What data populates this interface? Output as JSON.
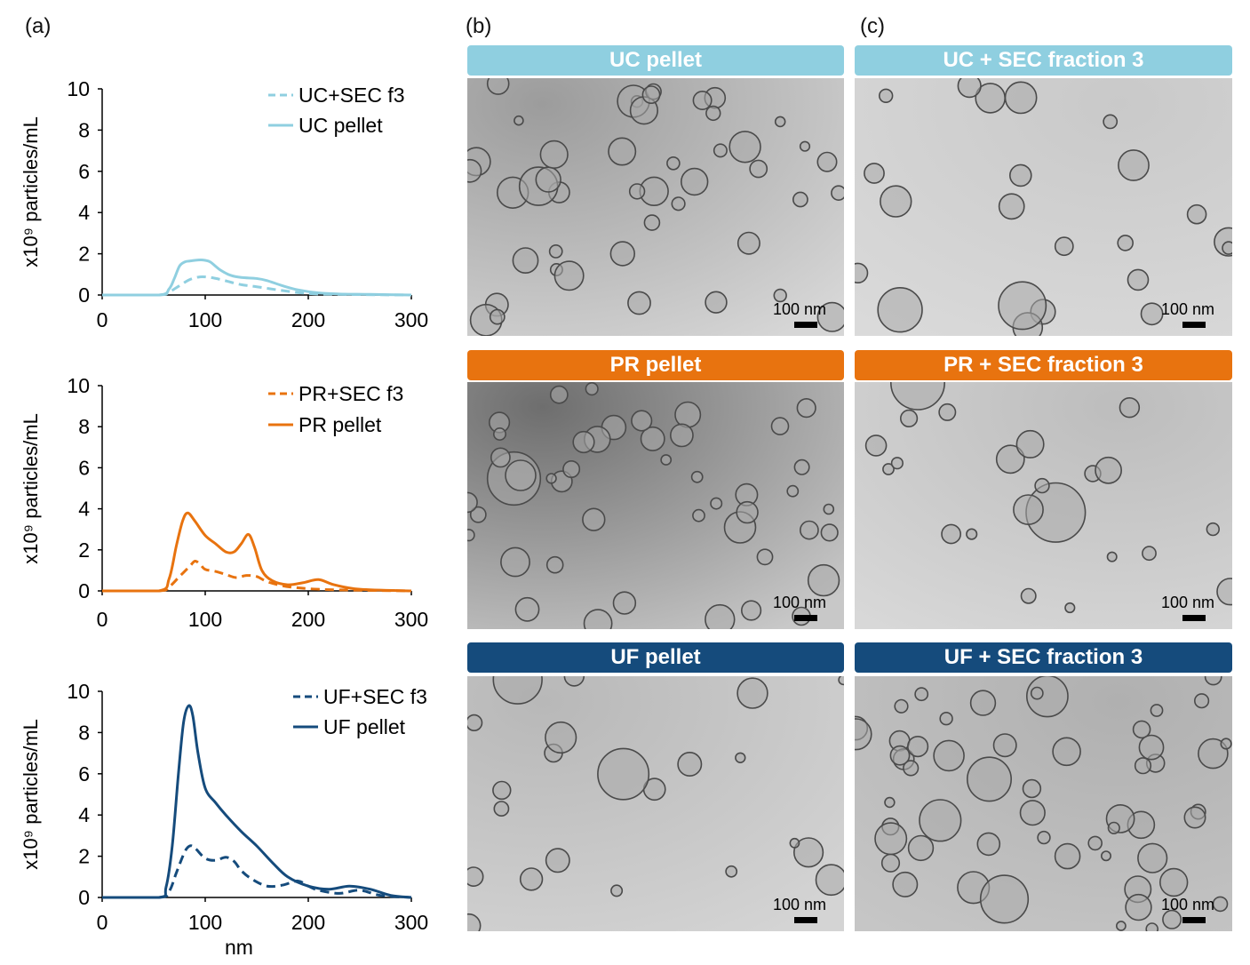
{
  "figure": {
    "panel_labels": {
      "a": "(a)",
      "b": "(b)",
      "c": "(c)"
    },
    "colors": {
      "uc": "#8fcfe0",
      "pr": "#e8730f",
      "uf": "#154b7c"
    },
    "em_panels": [
      {
        "title": "UC pellet",
        "scale_label": "100 nm",
        "color_key": "uc"
      },
      {
        "title": "UC + SEC fraction 3",
        "scale_label": "100 nm",
        "color_key": "uc"
      },
      {
        "title": "PR pellet",
        "scale_label": "100 nm",
        "color_key": "pr"
      },
      {
        "title": "PR + SEC fraction 3",
        "scale_label": "100 nm",
        "color_key": "pr"
      },
      {
        "title": "UF pellet",
        "scale_label": "100 nm",
        "color_key": "uf"
      },
      {
        "title": "UF + SEC fraction 3",
        "scale_label": "100 nm",
        "color_key": "uf"
      }
    ]
  },
  "chart_data": [
    {
      "type": "line",
      "ylabel": "x10⁹ particles/mL",
      "xlabel": "",
      "xlim": [
        0,
        300
      ],
      "ylim": [
        0,
        10
      ],
      "xticks": [
        0,
        100,
        200,
        300
      ],
      "yticks": [
        0,
        2,
        4,
        6,
        8,
        10
      ],
      "color": "#8fcfe0",
      "legend_position": "top-right",
      "series": [
        {
          "name": "UC+SEC f3",
          "style": "dashed",
          "x": [
            0,
            55,
            65,
            75,
            85,
            95,
            105,
            115,
            125,
            135,
            150,
            170,
            190,
            210,
            250,
            300
          ],
          "y": [
            0,
            0,
            0.15,
            0.45,
            0.75,
            0.88,
            0.85,
            0.75,
            0.62,
            0.5,
            0.4,
            0.25,
            0.12,
            0.05,
            0.02,
            0
          ]
        },
        {
          "name": "UC pellet",
          "style": "solid",
          "x": [
            0,
            55,
            65,
            70,
            75,
            80,
            85,
            95,
            100,
            105,
            115,
            125,
            135,
            150,
            160,
            175,
            190,
            210,
            230,
            260,
            300
          ],
          "y": [
            0,
            0,
            0.3,
            0.8,
            1.4,
            1.6,
            1.65,
            1.7,
            1.68,
            1.6,
            1.2,
            0.95,
            0.85,
            0.8,
            0.7,
            0.45,
            0.25,
            0.1,
            0.05,
            0.03,
            0
          ]
        }
      ]
    },
    {
      "type": "line",
      "ylabel": "x10⁹ particles/mL",
      "xlabel": "",
      "xlim": [
        0,
        300
      ],
      "ylim": [
        0,
        10
      ],
      "xticks": [
        0,
        100,
        200,
        300
      ],
      "yticks": [
        0,
        2,
        4,
        6,
        8,
        10
      ],
      "color": "#e8730f",
      "legend_position": "top-right",
      "series": [
        {
          "name": "PR+SEC f3",
          "style": "dashed",
          "x": [
            0,
            55,
            65,
            75,
            85,
            90,
            95,
            100,
            110,
            120,
            130,
            140,
            150,
            160,
            175,
            190,
            210,
            240,
            300
          ],
          "y": [
            0,
            0,
            0.2,
            0.7,
            1.2,
            1.45,
            1.3,
            1.05,
            0.95,
            0.8,
            0.65,
            0.75,
            0.7,
            0.45,
            0.25,
            0.15,
            0.08,
            0.04,
            0
          ]
        },
        {
          "name": "PR pellet",
          "style": "solid",
          "x": [
            0,
            55,
            65,
            72,
            78,
            83,
            90,
            100,
            110,
            120,
            128,
            135,
            142,
            148,
            155,
            165,
            180,
            195,
            210,
            225,
            250,
            300
          ],
          "y": [
            0,
            0,
            0.6,
            2.2,
            3.4,
            3.8,
            3.4,
            2.7,
            2.3,
            1.9,
            1.9,
            2.3,
            2.75,
            2.1,
            1.0,
            0.5,
            0.3,
            0.4,
            0.55,
            0.3,
            0.08,
            0
          ]
        }
      ]
    },
    {
      "type": "line",
      "ylabel": "x10⁹ particles/mL",
      "xlabel": "nm",
      "xlim": [
        0,
        300
      ],
      "ylim": [
        0,
        10
      ],
      "xticks": [
        0,
        100,
        200,
        300
      ],
      "yticks": [
        0,
        2,
        4,
        6,
        8,
        10
      ],
      "color": "#154b7c",
      "legend_position": "top-right",
      "series": [
        {
          "name": "UF+SEC f3",
          "style": "dashed",
          "x": [
            0,
            55,
            65,
            72,
            80,
            85,
            90,
            100,
            110,
            120,
            128,
            135,
            145,
            160,
            175,
            190,
            200,
            210,
            230,
            250,
            270,
            300
          ],
          "y": [
            0,
            0,
            0.3,
            1.2,
            2.2,
            2.5,
            2.4,
            1.9,
            1.8,
            1.95,
            1.75,
            1.3,
            0.9,
            0.55,
            0.6,
            0.8,
            0.55,
            0.35,
            0.2,
            0.35,
            0.1,
            0
          ]
        },
        {
          "name": "UF pellet",
          "style": "solid",
          "x": [
            0,
            55,
            62,
            68,
            74,
            79,
            84,
            88,
            93,
            100,
            110,
            120,
            135,
            150,
            165,
            180,
            200,
            220,
            240,
            260,
            280,
            300
          ],
          "y": [
            0,
            0,
            0.5,
            2.5,
            6.0,
            8.5,
            9.3,
            8.8,
            7.0,
            5.3,
            4.6,
            4.0,
            3.2,
            2.5,
            1.7,
            1.0,
            0.55,
            0.4,
            0.55,
            0.4,
            0.1,
            0
          ]
        }
      ]
    }
  ]
}
